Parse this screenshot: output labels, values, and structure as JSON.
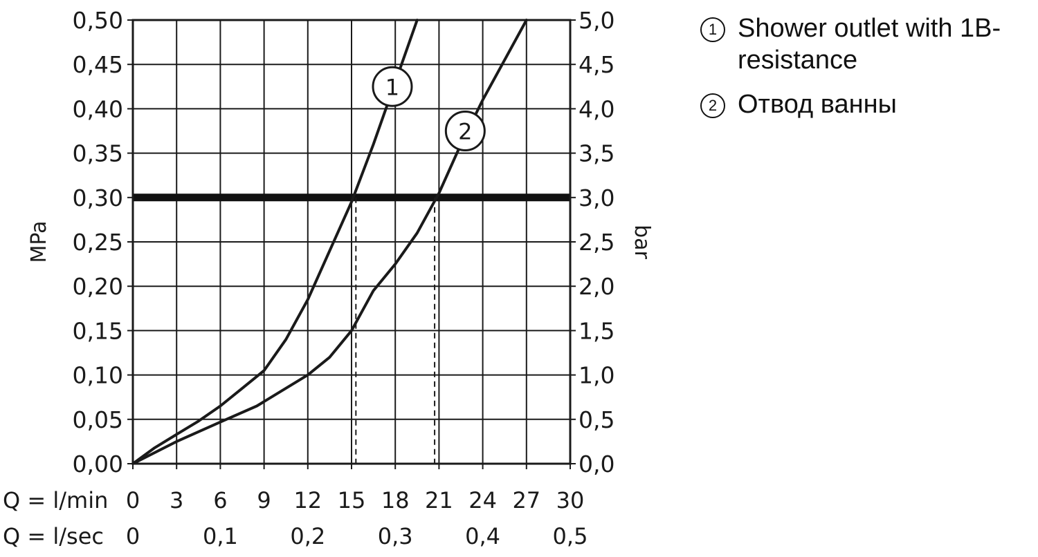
{
  "chart_data": {
    "type": "line",
    "x_unit_label": "Q = l/min",
    "x2_unit_label": "Q = l/sec",
    "ylabel": "MPa",
    "y2label": "bar",
    "xlim": [
      0,
      30
    ],
    "ylim": [
      0,
      0.5
    ],
    "x_ticks": [
      "0",
      "3",
      "6",
      "9",
      "12",
      "15",
      "18",
      "21",
      "24",
      "27",
      "30"
    ],
    "x2_ticks": [
      "0",
      "0,1",
      "0,2",
      "0,3",
      "0,4",
      "0,5"
    ],
    "y_ticks": [
      "0,00",
      "0,05",
      "0,10",
      "0,15",
      "0,20",
      "0,25",
      "0,30",
      "0,35",
      "0,40",
      "0,45",
      "0,50"
    ],
    "y2_ticks": [
      "0,0",
      "0,5",
      "1,0",
      "1,5",
      "2,0",
      "2,5",
      "3,0",
      "3,5",
      "4,0",
      "4,5",
      "5,0"
    ],
    "grid": true,
    "reference_line": {
      "y": 0.3
    },
    "series": [
      {
        "marker": "1",
        "x": [
          0,
          1.5,
          3,
          4.5,
          6,
          7.5,
          9,
          10.5,
          12,
          13.5,
          15,
          16.5,
          18,
          19.5
        ],
        "y": [
          0,
          0.018,
          0.033,
          0.048,
          0.065,
          0.085,
          0.105,
          0.14,
          0.185,
          0.24,
          0.295,
          0.36,
          0.43,
          0.5
        ]
      },
      {
        "marker": "2",
        "x": [
          0,
          3,
          6,
          8.5,
          12,
          13.5,
          15,
          16.5,
          18,
          19.5,
          21,
          22.5,
          24,
          25.5,
          27
        ],
        "y": [
          0,
          0.025,
          0.047,
          0.065,
          0.1,
          0.12,
          0.15,
          0.195,
          0.225,
          0.26,
          0.305,
          0.36,
          0.41,
          0.455,
          0.5
        ]
      }
    ],
    "drop_lines": [
      {
        "series": "1",
        "x": 15.3,
        "y": 0.3
      },
      {
        "series": "2",
        "x": 20.7,
        "y": 0.3
      }
    ],
    "colors": {
      "line": "#1a1a1a",
      "grid": "#1a1a1a",
      "reference": "#111111"
    }
  },
  "legend": [
    {
      "marker": "1",
      "label": "Shower outlet with 1B-resistance"
    },
    {
      "marker": "2",
      "label": "Отвод ванны"
    }
  ]
}
